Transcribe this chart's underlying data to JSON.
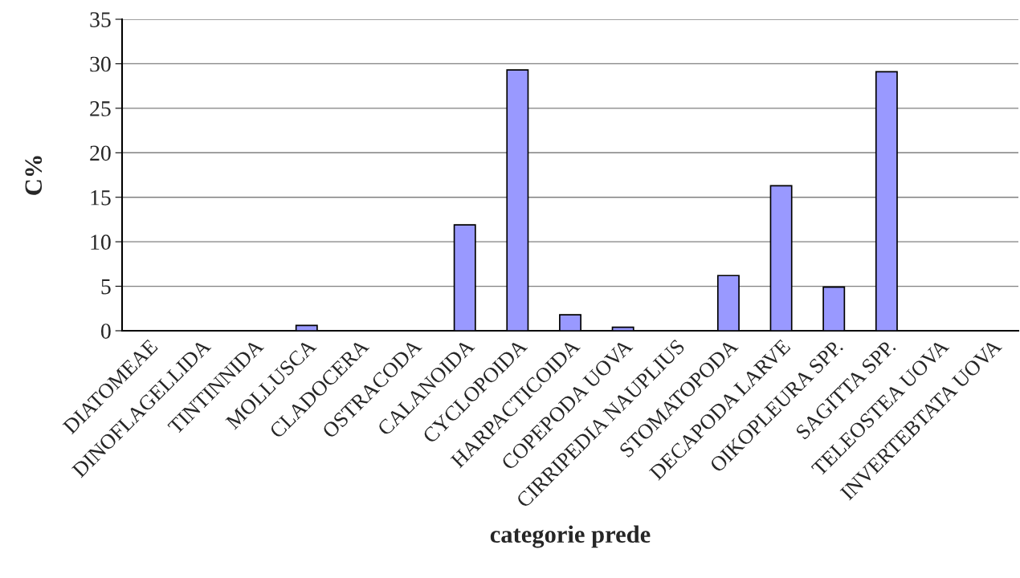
{
  "chart_data": {
    "type": "bar",
    "xlabel": "categorie prede",
    "ylabel": "C%",
    "categories": [
      "DIATOMEAE",
      "DINOFLAGELLIDA",
      "TINTINNIDA",
      "MOLLUSCA",
      "CLADOCERA",
      "OSTRACODA",
      "CALANOIDA",
      "CYCLOPOIDA",
      "HARPACTICOIDA",
      "COPEPODA UOVA",
      "CIRRIPEDIA NAUPLIUS",
      "STOMATOPODA",
      "DECAPODA LARVE",
      "OIKOPLEURA SPP.",
      "SAGITTA SPP.",
      "TELEOSTEA UOVA",
      "INVERTEBTATA UOVA"
    ],
    "values": [
      0,
      0,
      0,
      0.6,
      0,
      0,
      11.9,
      29.3,
      1.8,
      0.4,
      0,
      6.2,
      16.3,
      4.9,
      29.1,
      0,
      0
    ],
    "color": "#9999ff",
    "ylim": [
      0,
      35
    ],
    "yticks": [
      0,
      5,
      10,
      15,
      20,
      25,
      30,
      35
    ],
    "grid": "y"
  }
}
